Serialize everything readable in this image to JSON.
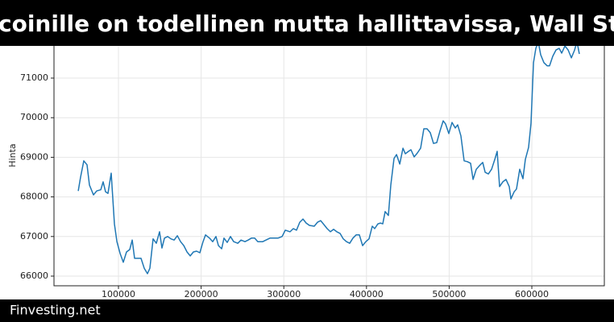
{
  "chart_data": {
    "type": "line",
    "title": "coinille on todellinen mutta hallittavissa, Wall Str",
    "ylabel": "Hinta",
    "x": [
      51300,
      54200,
      58100,
      62000,
      64900,
      69800,
      73700,
      78600,
      81500,
      84400,
      87300,
      91200,
      95100,
      98100,
      102000,
      105800,
      109700,
      113600,
      116600,
      119500,
      123400,
      127300,
      131200,
      135100,
      138000,
      141900,
      145800,
      149700,
      152600,
      155600,
      159500,
      163400,
      167300,
      171200,
      175100,
      179000,
      182900,
      186800,
      190600,
      194500,
      198400,
      202300,
      205300,
      210100,
      214000,
      217900,
      220900,
      224800,
      227700,
      231600,
      235500,
      239400,
      244300,
      248200,
      253000,
      256900,
      260800,
      264700,
      268600,
      274500,
      278400,
      283200,
      288100,
      293000,
      297900,
      301800,
      307600,
      311500,
      315400,
      319300,
      323200,
      327100,
      331000,
      336800,
      340700,
      344600,
      348500,
      352400,
      356300,
      360200,
      364100,
      368000,
      371900,
      375800,
      379700,
      383600,
      387500,
      391400,
      395300,
      399200,
      403100,
      407000,
      409900,
      413800,
      416800,
      419700,
      422600,
      426500,
      429400,
      433300,
      436300,
      440200,
      444100,
      447000,
      450900,
      453800,
      457700,
      461600,
      465500,
      469400,
      473300,
      477200,
      481100,
      485000,
      488900,
      492800,
      495700,
      499600,
      503500,
      507400,
      510300,
      514200,
      518100,
      522000,
      525900,
      528900,
      532800,
      536700,
      540600,
      543500,
      547400,
      551300,
      555200,
      558100,
      561000,
      564900,
      568800,
      572700,
      574700,
      578600,
      581500,
      585400,
      589300,
      592200,
      596100,
      599000,
      602000,
      604900,
      607800,
      610700,
      614600,
      618500,
      621400,
      625300,
      629200,
      633100,
      636100,
      640000,
      643900,
      647800,
      651700,
      654600,
      657500
    ],
    "series": [
      {
        "color": "#1f77b4",
        "values": [
          68150,
          68500,
          68910,
          68810,
          68300,
          68050,
          68150,
          68180,
          68380,
          68130,
          68090,
          68600,
          67320,
          66870,
          66570,
          66350,
          66610,
          66670,
          66910,
          66450,
          66450,
          66450,
          66200,
          66060,
          66200,
          66940,
          66830,
          67120,
          66710,
          66960,
          67000,
          66940,
          66910,
          67020,
          66870,
          66770,
          66610,
          66510,
          66610,
          66630,
          66590,
          66870,
          67040,
          66960,
          66870,
          67000,
          66770,
          66690,
          66960,
          66850,
          67000,
          66870,
          66830,
          66910,
          66870,
          66910,
          66960,
          66960,
          66870,
          66870,
          66910,
          66960,
          66960,
          66960,
          67000,
          67160,
          67120,
          67200,
          67160,
          67360,
          67440,
          67340,
          67280,
          67260,
          67360,
          67400,
          67300,
          67200,
          67120,
          67180,
          67120,
          67080,
          66940,
          66870,
          66830,
          66960,
          67040,
          67040,
          66770,
          66870,
          66940,
          67260,
          67200,
          67320,
          67340,
          67320,
          67630,
          67530,
          68300,
          68970,
          69070,
          68830,
          69230,
          69090,
          69150,
          69190,
          69010,
          69110,
          69230,
          69720,
          69720,
          69620,
          69350,
          69370,
          69660,
          69920,
          69840,
          69600,
          69880,
          69740,
          69820,
          69540,
          68910,
          68890,
          68850,
          68440,
          68700,
          68790,
          68870,
          68620,
          68580,
          68700,
          68950,
          69150,
          68260,
          68380,
          68440,
          68260,
          67950,
          68130,
          68200,
          68700,
          68460,
          68950,
          69250,
          69860,
          71390,
          71750,
          71920,
          71590,
          71390,
          71310,
          71310,
          71550,
          71710,
          71750,
          71630,
          71810,
          71710,
          71510,
          71710,
          71920,
          71610
        ]
      }
    ],
    "xlim": [
      22000,
      687700
    ],
    "ylim": [
      65756,
      71813
    ],
    "xticks": [
      100000,
      200000,
      300000,
      400000,
      500000,
      600000
    ],
    "yticks": [
      66000,
      67000,
      68000,
      69000,
      70000,
      71000
    ],
    "grid": true
  },
  "footer": "Finvesting.net"
}
